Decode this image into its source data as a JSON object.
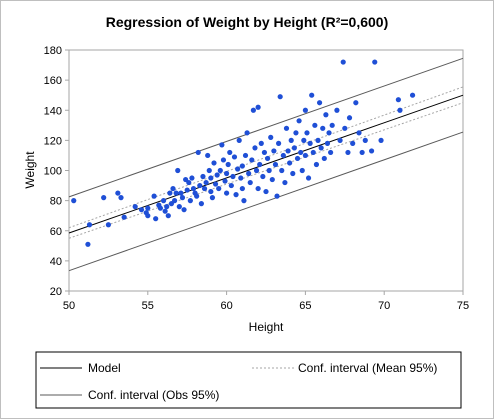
{
  "chart_data": {
    "type": "scatter",
    "title": "Regression of Weight by Height (R²=0,600)",
    "xlabel": "Height",
    "ylabel": "Weight",
    "xlim": [
      50,
      75
    ],
    "ylim": [
      20,
      180
    ],
    "xticks": [
      50,
      55,
      60,
      65,
      70,
      75
    ],
    "yticks": [
      20,
      40,
      60,
      80,
      100,
      120,
      140,
      160,
      180
    ],
    "grid": false,
    "legend_placement": "bottom",
    "points": [
      [
        50.3,
        80
      ],
      [
        51.2,
        51
      ],
      [
        51.3,
        64
      ],
      [
        52.2,
        82
      ],
      [
        52.5,
        64
      ],
      [
        53.1,
        85
      ],
      [
        53.3,
        82
      ],
      [
        53.5,
        69
      ],
      [
        54.2,
        76
      ],
      [
        54.6,
        74
      ],
      [
        54.9,
        72
      ],
      [
        55.0,
        75
      ],
      [
        55.0,
        70
      ],
      [
        55.4,
        83
      ],
      [
        55.5,
        68
      ],
      [
        55.7,
        77
      ],
      [
        55.8,
        75
      ],
      [
        56.0,
        80
      ],
      [
        56.1,
        73
      ],
      [
        56.2,
        76
      ],
      [
        56.3,
        70
      ],
      [
        56.4,
        85
      ],
      [
        56.5,
        78
      ],
      [
        56.6,
        88
      ],
      [
        56.7,
        80
      ],
      [
        56.8,
        85
      ],
      [
        56.9,
        100
      ],
      [
        57.0,
        76
      ],
      [
        57.1,
        85
      ],
      [
        57.2,
        82
      ],
      [
        57.3,
        74
      ],
      [
        57.4,
        94
      ],
      [
        57.5,
        87
      ],
      [
        57.6,
        92
      ],
      [
        57.7,
        80
      ],
      [
        57.8,
        95
      ],
      [
        57.9,
        88
      ],
      [
        58.0,
        85
      ],
      [
        58.1,
        83
      ],
      [
        58.2,
        112
      ],
      [
        58.3,
        90
      ],
      [
        58.4,
        78
      ],
      [
        58.5,
        96
      ],
      [
        58.6,
        88
      ],
      [
        58.7,
        92
      ],
      [
        58.8,
        110
      ],
      [
        58.9,
        100
      ],
      [
        59.0,
        86
      ],
      [
        59.0,
        95
      ],
      [
        59.1,
        82
      ],
      [
        59.2,
        105
      ],
      [
        59.3,
        91
      ],
      [
        59.4,
        97
      ],
      [
        59.5,
        88
      ],
      [
        59.6,
        100
      ],
      [
        59.7,
        117
      ],
      [
        59.8,
        107
      ],
      [
        59.9,
        93
      ],
      [
        60.0,
        85
      ],
      [
        60.0,
        98
      ],
      [
        60.1,
        104
      ],
      [
        60.2,
        112
      ],
      [
        60.3,
        90
      ],
      [
        60.4,
        96
      ],
      [
        60.5,
        109
      ],
      [
        60.6,
        84
      ],
      [
        60.7,
        101
      ],
      [
        60.8,
        120
      ],
      [
        60.9,
        95
      ],
      [
        61.0,
        88
      ],
      [
        61.0,
        103
      ],
      [
        61.1,
        80
      ],
      [
        61.2,
        110
      ],
      [
        61.3,
        125
      ],
      [
        61.4,
        98
      ],
      [
        61.5,
        92
      ],
      [
        61.6,
        107
      ],
      [
        61.7,
        140
      ],
      [
        61.8,
        115
      ],
      [
        61.9,
        100
      ],
      [
        62.0,
        142
      ],
      [
        62.0,
        88
      ],
      [
        62.1,
        104
      ],
      [
        62.2,
        118
      ],
      [
        62.3,
        96
      ],
      [
        62.4,
        112
      ],
      [
        62.5,
        86
      ],
      [
        62.6,
        108
      ],
      [
        62.7,
        100
      ],
      [
        62.8,
        122
      ],
      [
        62.9,
        94
      ],
      [
        63.0,
        113
      ],
      [
        63.1,
        104
      ],
      [
        63.2,
        83
      ],
      [
        63.3,
        118
      ],
      [
        63.4,
        149
      ],
      [
        63.5,
        100
      ],
      [
        63.6,
        110
      ],
      [
        63.7,
        92
      ],
      [
        63.8,
        128
      ],
      [
        63.9,
        113
      ],
      [
        64.0,
        105
      ],
      [
        64.1,
        120
      ],
      [
        64.2,
        98
      ],
      [
        64.3,
        115
      ],
      [
        64.4,
        125
      ],
      [
        64.5,
        108
      ],
      [
        64.6,
        133
      ],
      [
        64.7,
        112
      ],
      [
        64.8,
        100
      ],
      [
        64.9,
        120
      ],
      [
        65.0,
        140
      ],
      [
        65.0,
        110
      ],
      [
        65.1,
        125
      ],
      [
        65.2,
        95
      ],
      [
        65.3,
        118
      ],
      [
        65.4,
        150
      ],
      [
        65.5,
        112
      ],
      [
        65.6,
        130
      ],
      [
        65.7,
        104
      ],
      [
        65.8,
        120
      ],
      [
        65.9,
        145
      ],
      [
        66.0,
        115
      ],
      [
        66.1,
        128
      ],
      [
        66.2,
        108
      ],
      [
        66.3,
        137
      ],
      [
        66.4,
        118
      ],
      [
        66.5,
        125
      ],
      [
        66.6,
        112
      ],
      [
        66.7,
        130
      ],
      [
        67.0,
        140
      ],
      [
        67.2,
        120
      ],
      [
        67.4,
        172
      ],
      [
        67.5,
        128
      ],
      [
        67.7,
        112
      ],
      [
        67.8,
        135
      ],
      [
        68.0,
        118
      ],
      [
        68.2,
        145
      ],
      [
        68.4,
        125
      ],
      [
        68.6,
        112
      ],
      [
        68.8,
        120
      ],
      [
        69.2,
        113
      ],
      [
        69.4,
        172
      ],
      [
        69.8,
        120
      ],
      [
        70.9,
        147
      ],
      [
        71.0,
        140
      ],
      [
        71.8,
        150
      ]
    ],
    "lines": {
      "model": {
        "name": "Model",
        "x": [
          50,
          75
        ],
        "y": [
          58.5,
          150.0
        ]
      },
      "conf_mean_upper": {
        "x": [
          50,
          75
        ],
        "y": [
          62.0,
          155.5
        ]
      },
      "conf_mean_lower": {
        "x": [
          50,
          75
        ],
        "y": [
          55.0,
          145.0
        ]
      },
      "conf_obs_upper": {
        "x": [
          50,
          75
        ],
        "y": [
          82.5,
          174.5
        ]
      },
      "conf_obs_lower": {
        "x": [
          50,
          75
        ],
        "y": [
          33.5,
          125.5
        ]
      }
    },
    "legend": {
      "model": "Model",
      "conf_mean": "Conf. interval (Mean 95%)",
      "conf_obs": "Conf. interval (Obs 95%)"
    },
    "colors": {
      "points": "#1f4fd6",
      "model": "#000000",
      "conf_mean": "#a6a6a6",
      "conf_obs": "#595959"
    }
  }
}
